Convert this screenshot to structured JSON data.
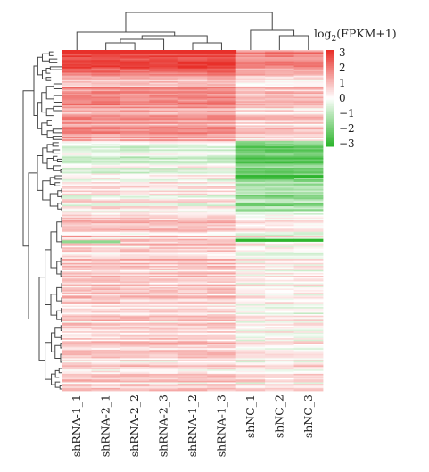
{
  "chart_data": {
    "type": "heatmap",
    "columns": [
      "shRNA-1_1",
      "shRNA-2_1",
      "shRNA-2_2",
      "shRNA-2_3",
      "shRNA-1_2",
      "shRNA-1_3",
      "shNC_1",
      "shNC_2",
      "shNC_3"
    ],
    "colorbar": {
      "title_main": "log",
      "title_sub": "2",
      "title_rest": "(FPKM+1)",
      "ticks": [
        "3",
        "2",
        "1",
        "0",
        "−1",
        "−2",
        "−3"
      ],
      "range": [
        -3,
        3
      ],
      "colors": {
        "high": "#e8302a",
        "mid": "#ffffff",
        "low": "#2db52d"
      }
    },
    "row_blocks": [
      {
        "rows": 16,
        "shRNA": 2.6,
        "shNC": 1.6
      },
      {
        "rows": 48,
        "shRNA": 1.4,
        "shNC": 0.7
      },
      {
        "rows": 24,
        "shRNA": -0.3,
        "shNC": -2.0
      },
      {
        "rows": 26,
        "shRNA": 0.1,
        "shNC": -1.4
      },
      {
        "rows": 100,
        "shRNA": 0.7,
        "shNC": 0.1
      },
      {
        "rows": 26,
        "shRNA": 0.5,
        "shNC": 0.2
      }
    ]
  }
}
